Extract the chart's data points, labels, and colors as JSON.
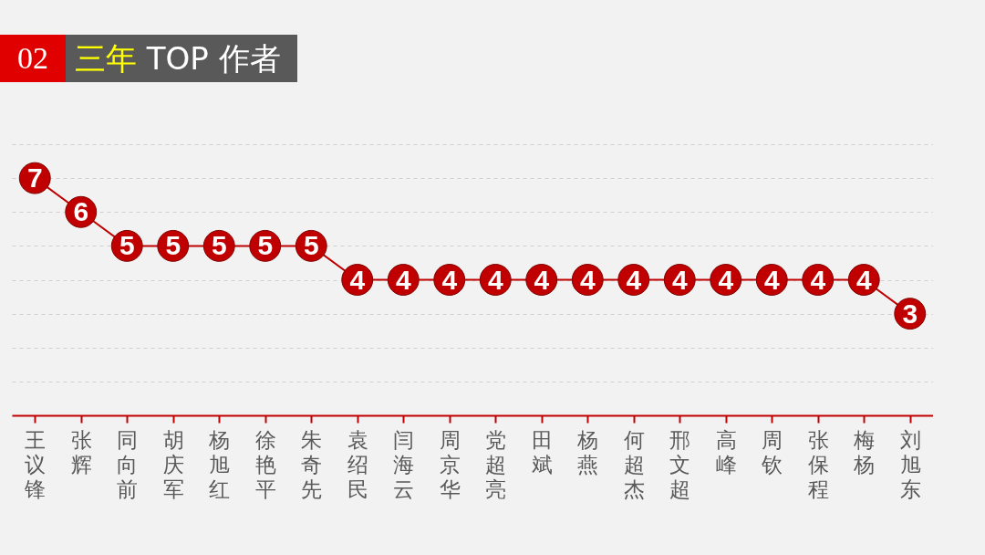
{
  "chart_data": {
    "type": "line",
    "title": "02 三年 TOP 作者",
    "categories": [
      "王议锋",
      "张辉",
      "同向前",
      "胡庆军",
      "杨旭红",
      "徐艳平",
      "朱奇先",
      "袁绍民",
      "闫海云",
      "周京华",
      "党超亮",
      "田斌",
      "杨燕",
      "何超杰",
      "邢文超",
      "高峰",
      "周钦",
      "张保程",
      "梅杨",
      "刘旭东"
    ],
    "series": [
      {
        "color": "#c00000",
        "values": [
          7,
          6,
          5,
          5,
          5,
          5,
          5,
          4,
          4,
          4,
          4,
          4,
          4,
          4,
          4,
          4,
          4,
          4,
          4,
          3
        ]
      }
    ],
    "ylim": [
      0,
      8
    ],
    "yticks": [
      {
        "value": 0,
        "label": null
      },
      {
        "value": 1,
        "label": null
      },
      {
        "value": 2,
        "label": null
      },
      {
        "value": 3,
        "label": null
      },
      {
        "value": 4,
        "label": null
      },
      {
        "value": 5,
        "label": null
      },
      {
        "value": 6,
        "label": null
      },
      {
        "value": 7,
        "label": null
      },
      {
        "value": 8,
        "label": null
      }
    ],
    "grid": "y",
    "tick_labels": "x",
    "marker": "circle",
    "line_style": "solid",
    "data_labels": true
  }
}
